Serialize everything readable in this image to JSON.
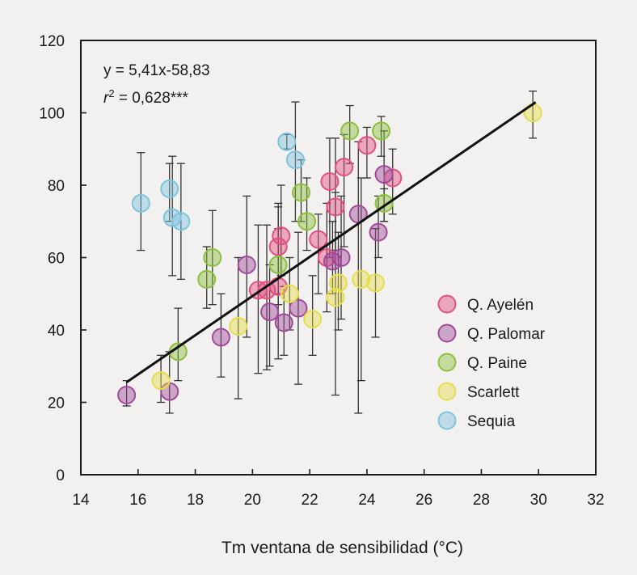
{
  "chart_data": {
    "type": "scatter",
    "title": "",
    "xlabel": "Tm ventana de sensibilidad (°C)",
    "ylabel": "",
    "xlim": [
      14,
      32
    ],
    "ylim": [
      0,
      120
    ],
    "xticks": [
      "14",
      "16",
      "18",
      "20",
      "22",
      "24",
      "26",
      "28",
      "30",
      "32"
    ],
    "yticks": [
      "0",
      "20",
      "40",
      "60",
      "80",
      "100",
      "120"
    ],
    "grid": false,
    "legend_position": "bottom-right",
    "annotation": {
      "equation": "y = 5,41x-58,83",
      "r2_prefix": "r",
      "r2_sup": "2",
      "r2_value": " = 0,628***"
    },
    "regression": {
      "slope": 5.41,
      "intercept": -58.83,
      "x_range": [
        15.6,
        29.9
      ]
    },
    "series": [
      {
        "name": "Q. Ayelén",
        "color": "#e34f80",
        "points": [
          {
            "x": 20.9,
            "y": 63,
            "lo": 50,
            "hi": 75
          },
          {
            "x": 21.0,
            "y": 66,
            "lo": 55,
            "hi": 80
          },
          {
            "x": 22.3,
            "y": 65,
            "lo": 50,
            "hi": 72
          },
          {
            "x": 22.6,
            "y": 60,
            "lo": 45,
            "hi": 75
          },
          {
            "x": 22.7,
            "y": 81,
            "lo": 60,
            "hi": 93
          },
          {
            "x": 22.9,
            "y": 74,
            "lo": 62,
            "hi": 93
          },
          {
            "x": 23.2,
            "y": 85,
            "lo": 63,
            "hi": 94
          },
          {
            "x": 24.0,
            "y": 91,
            "lo": 82,
            "hi": 96
          },
          {
            "x": 20.2,
            "y": 51,
            "lo": 28,
            "hi": 69
          },
          {
            "x": 20.5,
            "y": 51,
            "lo": 29,
            "hi": 69
          },
          {
            "x": 20.9,
            "y": 52,
            "lo": 32,
            "hi": 68
          },
          {
            "x": 24.9,
            "y": 82,
            "lo": 72,
            "hi": 90
          }
        ]
      },
      {
        "name": "Q. Palomar",
        "color": "#a04a9a",
        "points": [
          {
            "x": 15.6,
            "y": 22,
            "lo": 19,
            "hi": 26
          },
          {
            "x": 17.1,
            "y": 23,
            "lo": 17,
            "hi": 34
          },
          {
            "x": 18.9,
            "y": 38,
            "lo": 27,
            "hi": 50
          },
          {
            "x": 19.8,
            "y": 58,
            "lo": 38,
            "hi": 77
          },
          {
            "x": 20.6,
            "y": 45,
            "lo": 30,
            "hi": 58
          },
          {
            "x": 21.1,
            "y": 42,
            "lo": 33,
            "hi": 52
          },
          {
            "x": 21.6,
            "y": 46,
            "lo": 25,
            "hi": 67
          },
          {
            "x": 22.8,
            "y": 59,
            "lo": 50,
            "hi": 70
          },
          {
            "x": 23.1,
            "y": 60,
            "lo": 43,
            "hi": 77
          },
          {
            "x": 23.7,
            "y": 72,
            "lo": 17,
            "hi": 92
          },
          {
            "x": 24.4,
            "y": 67,
            "lo": 60,
            "hi": 77
          },
          {
            "x": 24.6,
            "y": 83,
            "lo": 70,
            "hi": 95
          }
        ]
      },
      {
        "name": "Q. Paine",
        "color": "#8cbf3f",
        "points": [
          {
            "x": 17.4,
            "y": 34,
            "lo": 26,
            "hi": 46
          },
          {
            "x": 18.4,
            "y": 54,
            "lo": 46,
            "hi": 63
          },
          {
            "x": 18.6,
            "y": 60,
            "lo": 47,
            "hi": 73
          },
          {
            "x": 20.9,
            "y": 58,
            "lo": 47,
            "hi": 74
          },
          {
            "x": 21.7,
            "y": 78,
            "lo": 70,
            "hi": 87
          },
          {
            "x": 21.9,
            "y": 70,
            "lo": 62,
            "hi": 82
          },
          {
            "x": 23.4,
            "y": 95,
            "lo": 86,
            "hi": 102
          },
          {
            "x": 24.5,
            "y": 95,
            "lo": 88,
            "hi": 99
          },
          {
            "x": 24.6,
            "y": 75,
            "lo": 70,
            "hi": 79
          }
        ]
      },
      {
        "name": "Scarlett",
        "color": "#e6dd4e",
        "points": [
          {
            "x": 16.8,
            "y": 26,
            "lo": 20,
            "hi": 33
          },
          {
            "x": 19.5,
            "y": 41,
            "lo": 21,
            "hi": 60
          },
          {
            "x": 21.3,
            "y": 50,
            "lo": 40,
            "hi": 60
          },
          {
            "x": 22.1,
            "y": 43,
            "lo": 33,
            "hi": 55
          },
          {
            "x": 22.9,
            "y": 49,
            "lo": 22,
            "hi": 78
          },
          {
            "x": 23.0,
            "y": 53,
            "lo": 40,
            "hi": 67
          },
          {
            "x": 23.8,
            "y": 54,
            "lo": 26,
            "hi": 82
          },
          {
            "x": 24.3,
            "y": 53,
            "lo": 38,
            "hi": 68
          },
          {
            "x": 29.8,
            "y": 100,
            "lo": 93,
            "hi": 106
          }
        ]
      },
      {
        "name": "Sequia",
        "color": "#7fc4dd",
        "points": [
          {
            "x": 16.1,
            "y": 75,
            "lo": 62,
            "hi": 89
          },
          {
            "x": 17.1,
            "y": 79,
            "lo": 70,
            "hi": 86
          },
          {
            "x": 17.2,
            "y": 71,
            "lo": 55,
            "hi": 88
          },
          {
            "x": 17.5,
            "y": 70,
            "lo": 54,
            "hi": 86
          },
          {
            "x": 21.2,
            "y": 92,
            "lo": 90,
            "hi": 94
          },
          {
            "x": 21.5,
            "y": 87,
            "lo": 70,
            "hi": 103
          }
        ]
      }
    ]
  }
}
